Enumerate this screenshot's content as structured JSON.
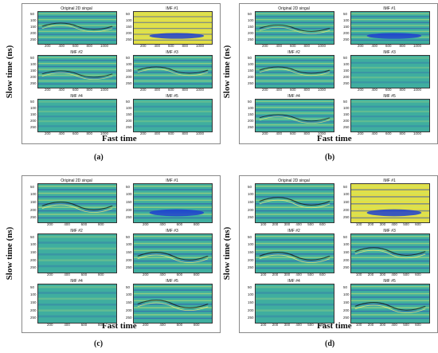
{
  "figure": {
    "ylabel": "Slow time (ns)",
    "xlabel": "Fast time",
    "panels": [
      {
        "caption": "(a)",
        "subplots": [
          {
            "title": "Original 2D singal",
            "xticks": [
              "200",
              "400",
              "600",
              "800",
              "1000"
            ],
            "yticks": [
              "50",
              "100",
              "150",
              "200",
              "250"
            ],
            "style": "orig"
          },
          {
            "title": "IMF #1",
            "xticks": [
              "200",
              "400",
              "600",
              "800",
              "1000"
            ],
            "yticks": [
              "50",
              "100",
              "150",
              "200",
              "250"
            ],
            "style": "imf1y"
          },
          {
            "title": "IMF #2",
            "xticks": [
              "200",
              "400",
              "600",
              "800",
              "1000"
            ],
            "yticks": [
              "50",
              "100",
              "150",
              "200",
              "250"
            ],
            "style": "imf"
          },
          {
            "title": "IMF #3",
            "xticks": [
              "200",
              "400",
              "600",
              "800",
              "1000"
            ],
            "yticks": [
              "50",
              "100",
              "150",
              "200",
              "250"
            ],
            "style": "imf"
          },
          {
            "title": "IMF #4",
            "xticks": [
              "200",
              "400",
              "600",
              "800",
              "1000"
            ],
            "yticks": [
              "50",
              "100",
              "150",
              "200",
              "250"
            ],
            "style": "flat"
          },
          {
            "title": "IMF #5",
            "xticks": [
              "200",
              "400",
              "600",
              "800",
              "1000"
            ],
            "yticks": [
              "50",
              "100",
              "150",
              "200",
              "250"
            ],
            "style": "flat"
          }
        ]
      },
      {
        "caption": "(b)",
        "subplots": [
          {
            "title": "Original 2D singal",
            "xticks": [
              "200",
              "400",
              "600",
              "800",
              "1000"
            ],
            "yticks": [
              "50",
              "100",
              "150",
              "200",
              "250"
            ],
            "style": "orig"
          },
          {
            "title": "IMF #1",
            "xticks": [
              "200",
              "400",
              "600",
              "800",
              "1000"
            ],
            "yticks": [
              "50",
              "100",
              "150",
              "200",
              "250"
            ],
            "style": "imf1b"
          },
          {
            "title": "IMF #2",
            "xticks": [
              "200",
              "400",
              "600",
              "800",
              "1000"
            ],
            "yticks": [
              "50",
              "100",
              "150",
              "200",
              "250"
            ],
            "style": "imf"
          },
          {
            "title": "IMF #3",
            "xticks": [
              "200",
              "400",
              "600",
              "800",
              "1000"
            ],
            "yticks": [
              "50",
              "100",
              "150",
              "200",
              "250"
            ],
            "style": "flat"
          },
          {
            "title": "IMF #4",
            "xticks": [
              "200",
              "400",
              "600",
              "800",
              "1000"
            ],
            "yticks": [
              "50",
              "100",
              "150",
              "200",
              "250"
            ],
            "style": "imf"
          },
          {
            "title": "IMF #5",
            "xticks": [
              "200",
              "400",
              "600",
              "800",
              "1000"
            ],
            "yticks": [
              "50",
              "100",
              "150",
              "200",
              "250"
            ],
            "style": "flat"
          }
        ]
      },
      {
        "caption": "(c)",
        "subplots": [
          {
            "title": "Original 2D singal",
            "xticks": [
              "200",
              "400",
              "600",
              "800"
            ],
            "yticks": [
              "50",
              "100",
              "150",
              "200",
              "250"
            ],
            "style": "orig"
          },
          {
            "title": "IMF #1",
            "xticks": [
              "200",
              "400",
              "600",
              "800"
            ],
            "yticks": [
              "50",
              "100",
              "150",
              "200",
              "250"
            ],
            "style": "imf1b"
          },
          {
            "title": "IMF #2",
            "xticks": [
              "200",
              "400",
              "600",
              "800"
            ],
            "yticks": [
              "50",
              "100",
              "150",
              "200",
              "250"
            ],
            "style": "flat"
          },
          {
            "title": "IMF #3",
            "xticks": [
              "200",
              "400",
              "600",
              "800"
            ],
            "yticks": [
              "50",
              "100",
              "150",
              "200",
              "250"
            ],
            "style": "imf"
          },
          {
            "title": "IMF #4",
            "xticks": [
              "200",
              "400",
              "600",
              "800"
            ],
            "yticks": [
              "50",
              "100",
              "150",
              "200",
              "250"
            ],
            "style": "flat"
          },
          {
            "title": "IMF #5",
            "xticks": [
              "200",
              "400",
              "600",
              "800"
            ],
            "yticks": [
              "50",
              "100",
              "150",
              "200",
              "250"
            ],
            "style": "imf"
          }
        ]
      },
      {
        "caption": "(d)",
        "subplots": [
          {
            "title": "Original 2D singal",
            "xticks": [
              "100",
              "200",
              "300",
              "400",
              "500",
              "600"
            ],
            "yticks": [
              "50",
              "100",
              "150",
              "200",
              "250"
            ],
            "style": "orig"
          },
          {
            "title": "IMF #1",
            "xticks": [
              "100",
              "200",
              "300",
              "400",
              "500",
              "600"
            ],
            "yticks": [
              "50",
              "100",
              "150",
              "200",
              "250"
            ],
            "style": "imf1y"
          },
          {
            "title": "IMF #2",
            "xticks": [
              "100",
              "200",
              "300",
              "400",
              "500",
              "600"
            ],
            "yticks": [
              "50",
              "100",
              "150",
              "200",
              "250"
            ],
            "style": "imf"
          },
          {
            "title": "IMF #3",
            "xticks": [
              "100",
              "200",
              "300",
              "400",
              "500",
              "600"
            ],
            "yticks": [
              "50",
              "100",
              "150",
              "200",
              "250"
            ],
            "style": "imf"
          },
          {
            "title": "IMF #4",
            "xticks": [
              "100",
              "200",
              "300",
              "400",
              "500",
              "600"
            ],
            "yticks": [
              "50",
              "100",
              "150",
              "200",
              "250"
            ],
            "style": "flat"
          },
          {
            "title": "IMF #5",
            "xticks": [
              "100",
              "200",
              "300",
              "400",
              "500",
              "600"
            ],
            "yticks": [
              "50",
              "100",
              "150",
              "200",
              "250"
            ],
            "style": "imf"
          }
        ]
      }
    ]
  },
  "colors": {
    "background": "#3fae9f",
    "stripe_light": "#c9e86a",
    "stripe_dark": "#2d4fb5",
    "yellow": "#e3df45",
    "deep_blue": "#1f3fd0"
  }
}
